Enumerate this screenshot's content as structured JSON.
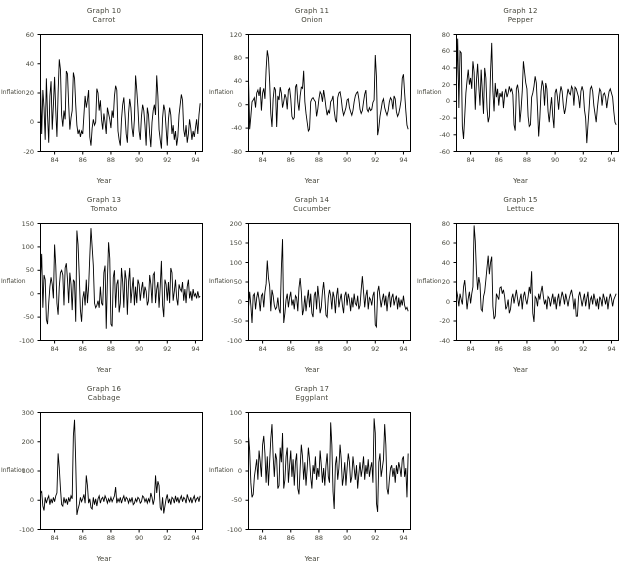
{
  "page": {
    "background": "#ffffff",
    "text_color": "#45453a",
    "line_color": "#000000"
  },
  "chart_data": [
    {
      "name": "carrot",
      "type": "line",
      "title": "Graph 10",
      "subtitle": "Carrot",
      "ylabel": "Inflation",
      "xlabel": "Year",
      "ylim": [
        -20,
        60
      ],
      "yticks": [
        60,
        40,
        20,
        0,
        -20
      ],
      "xlim": [
        83,
        94.5
      ],
      "xticks": [
        84,
        86,
        88,
        90,
        92,
        94
      ],
      "x_start": 83,
      "x_step": 0.08333,
      "grid": false,
      "legend": false,
      "values": [
        25,
        -8,
        22,
        10,
        -12,
        30,
        5,
        -14,
        18,
        28,
        -5,
        12,
        31,
        8,
        -10,
        20,
        43,
        36,
        5,
        -3,
        8,
        2,
        35,
        33,
        12,
        -5,
        3,
        8,
        34,
        30,
        12,
        -2,
        -8,
        -5,
        -10,
        -6,
        -8,
        5,
        18,
        10,
        15,
        22,
        -10,
        -16,
        -4,
        2,
        -2,
        0,
        23,
        20,
        8,
        15,
        2,
        -5,
        6,
        0,
        -8,
        10,
        6,
        2,
        -4,
        8,
        3,
        18,
        25,
        22,
        -6,
        -12,
        -16,
        2,
        12,
        17,
        5,
        -8,
        -14,
        6,
        16,
        10,
        -4,
        -10,
        2,
        32,
        22,
        10,
        -6,
        -12,
        4,
        12,
        8,
        -2,
        -16,
        10,
        5,
        -8,
        -17,
        0,
        8,
        12,
        5,
        32,
        18,
        -5,
        -12,
        -18,
        3,
        12,
        8,
        -4,
        -16,
        2,
        10,
        5,
        -8,
        -2,
        -12,
        -6,
        -16,
        -10,
        5,
        12,
        19,
        15,
        -5,
        -10,
        -2,
        -14,
        -8,
        2,
        -4,
        -12,
        -6,
        -10,
        -4,
        2,
        -8,
        5,
        13
      ]
    },
    {
      "name": "onion",
      "type": "line",
      "title": "Graph 11",
      "subtitle": "Onion",
      "ylabel": "Inflation",
      "xlabel": "Year",
      "ylim": [
        -80,
        120
      ],
      "yticks": [
        120,
        80,
        40,
        0,
        -40,
        -80
      ],
      "xlim": [
        83,
        94.5
      ],
      "xticks": [
        84,
        86,
        88,
        90,
        92,
        94
      ],
      "x_start": 83,
      "x_step": 0.08333,
      "grid": false,
      "legend": false,
      "values": [
        44,
        -42,
        -20,
        5,
        8,
        12,
        -5,
        20,
        25,
        15,
        30,
        -10,
        20,
        28,
        10,
        60,
        93,
        80,
        40,
        -15,
        -38,
        10,
        30,
        25,
        -38,
        15,
        8,
        30,
        20,
        -5,
        5,
        18,
        12,
        -8,
        25,
        28,
        10,
        -20,
        -25,
        -22,
        30,
        35,
        5,
        -10,
        15,
        30,
        28,
        58,
        5,
        -15,
        -30,
        -45,
        -42,
        5,
        10,
        12,
        8,
        5,
        -20,
        -8,
        10,
        22,
        18,
        5,
        25,
        12,
        -5,
        -18,
        -10,
        -15,
        5,
        8,
        15,
        -10,
        -25,
        -30,
        12,
        20,
        22,
        10,
        -8,
        -18,
        -12,
        -5,
        8,
        10,
        -5,
        -12,
        -18,
        -10,
        5,
        15,
        20,
        22,
        10,
        -8,
        -15,
        -10,
        5,
        18,
        25,
        -8,
        -12,
        -5,
        -10,
        -8,
        4,
        8,
        85,
        48,
        -52,
        -40,
        -20,
        -8,
        5,
        10,
        -5,
        -12,
        -18,
        -10,
        5,
        12,
        8,
        -8,
        15,
        10,
        -12,
        -20,
        -15,
        -5,
        8,
        45,
        52,
        20,
        -10,
        -35,
        -42
      ]
    },
    {
      "name": "pepper",
      "type": "line",
      "title": "Graph 12",
      "subtitle": "Pepper",
      "ylabel": "Inflation",
      "xlabel": "Year",
      "ylim": [
        -60,
        80
      ],
      "yticks": [
        80,
        60,
        40,
        20,
        0,
        -20,
        -40,
        -60
      ],
      "xlim": [
        83,
        94.5
      ],
      "xticks": [
        84,
        86,
        88,
        90,
        92,
        94
      ],
      "x_start": 83,
      "x_step": 0.08333,
      "grid": false,
      "legend": false,
      "values": [
        20,
        75,
        -8,
        60,
        58,
        -30,
        -45,
        -18,
        10,
        25,
        38,
        20,
        28,
        15,
        48,
        35,
        -10,
        25,
        45,
        18,
        -5,
        38,
        12,
        -15,
        40,
        28,
        -8,
        -25,
        -18,
        35,
        70,
        12,
        -12,
        22,
        5,
        15,
        -5,
        10,
        5,
        12,
        -8,
        8,
        15,
        5,
        10,
        18,
        12,
        15,
        8,
        -28,
        -35,
        15,
        20,
        10,
        -25,
        -10,
        12,
        48,
        35,
        22,
        15,
        -18,
        -30,
        -28,
        5,
        10,
        18,
        30,
        22,
        -8,
        -42,
        -20,
        12,
        25,
        18,
        -5,
        22,
        15,
        -12,
        -25,
        -8,
        5,
        -18,
        -32,
        10,
        15,
        5,
        -10,
        8,
        18,
        12,
        -5,
        -15,
        -8,
        5,
        15,
        10,
        8,
        18,
        15,
        -5,
        17,
        15,
        10,
        5,
        -8,
        12,
        18,
        12,
        -10,
        -20,
        -50,
        -28,
        -8,
        15,
        18,
        12,
        -5,
        -15,
        -25,
        -8,
        5,
        15,
        12,
        -5,
        8,
        10,
        5,
        -8,
        3,
        12,
        15,
        10,
        5,
        -12,
        -25,
        -28
      ]
    },
    {
      "name": "tomato",
      "type": "line",
      "title": "Graph 13",
      "subtitle": "Tomato",
      "ylabel": "Inflation",
      "xlabel": "Year",
      "ylim": [
        -100,
        150
      ],
      "yticks": [
        150,
        100,
        50,
        0,
        -50,
        -100
      ],
      "xlim": [
        83,
        94.5
      ],
      "xticks": [
        84,
        86,
        88,
        90,
        92,
        94
      ],
      "x_start": 83,
      "x_step": 0.08333,
      "grid": false,
      "legend": false,
      "values": [
        35,
        85,
        -30,
        40,
        30,
        -55,
        -65,
        -20,
        15,
        35,
        20,
        -10,
        105,
        60,
        -20,
        -45,
        15,
        45,
        50,
        40,
        -25,
        55,
        65,
        30,
        -20,
        45,
        20,
        -35,
        30,
        25,
        -60,
        135,
        105,
        40,
        -35,
        -60,
        -10,
        5,
        -25,
        30,
        -20,
        15,
        80,
        140,
        100,
        60,
        -20,
        -30,
        -25,
        -15,
        -30,
        15,
        -20,
        -25,
        45,
        60,
        -75,
        30,
        110,
        75,
        -65,
        -70,
        35,
        50,
        -30,
        20,
        30,
        -40,
        -20,
        55,
        25,
        -30,
        50,
        30,
        -45,
        25,
        55,
        -20,
        10,
        35,
        -25,
        15,
        -20,
        30,
        20,
        -15,
        10,
        25,
        -10,
        15,
        5,
        -25,
        -15,
        40,
        20,
        -20,
        40,
        45,
        -20,
        10,
        25,
        -30,
        15,
        70,
        -25,
        -50,
        30,
        20,
        -15,
        25,
        -20,
        55,
        45,
        -15,
        5,
        30,
        -10,
        -25,
        20,
        10,
        5,
        25,
        -15,
        10,
        -20,
        15,
        30,
        -10,
        5,
        -15,
        10,
        -5,
        0,
        -10,
        5,
        -8,
        -5
      ]
    },
    {
      "name": "cucumber",
      "type": "line",
      "title": "Graph 14",
      "subtitle": "Cucumber",
      "ylabel": "Inflation",
      "xlabel": "Year",
      "ylim": [
        -100,
        200
      ],
      "yticks": [
        200,
        150,
        100,
        50,
        0,
        -50,
        -100
      ],
      "xlim": [
        83,
        94.5
      ],
      "xticks": [
        84,
        86,
        88,
        90,
        92,
        94
      ],
      "x_start": 83,
      "x_step": 0.08333,
      "grid": false,
      "legend": false,
      "values": [
        -15,
        25,
        -10,
        -55,
        15,
        20,
        -20,
        10,
        25,
        5,
        -25,
        15,
        20,
        -15,
        25,
        45,
        105,
        60,
        40,
        -25,
        30,
        15,
        -10,
        -20,
        -15,
        10,
        -20,
        -30,
        85,
        160,
        -55,
        -30,
        5,
        20,
        -15,
        10,
        25,
        -10,
        5,
        -20,
        15,
        10,
        -25,
        35,
        60,
        25,
        -35,
        -20,
        15,
        -25,
        5,
        30,
        -15,
        20,
        -30,
        -40,
        15,
        25,
        -20,
        40,
        10,
        -30,
        -15,
        25,
        50,
        15,
        -35,
        -40,
        10,
        30,
        15,
        -20,
        25,
        10,
        -30,
        15,
        35,
        -15,
        5,
        20,
        -10,
        -30,
        15,
        25,
        -10,
        20,
        5,
        -25,
        10,
        -15,
        20,
        -5,
        -10,
        15,
        -20,
        -10,
        30,
        65,
        25,
        -15,
        15,
        30,
        -20,
        10,
        5,
        -10,
        15,
        25,
        -60,
        -65,
        25,
        40,
        10,
        -15,
        5,
        20,
        -10,
        15,
        -25,
        10,
        25,
        -15,
        10,
        20,
        -10,
        5,
        15,
        -20,
        10,
        -15,
        5,
        -10,
        15,
        -10,
        -20,
        -15,
        -25
      ]
    },
    {
      "name": "lettuce",
      "type": "line",
      "title": "Graph 15",
      "subtitle": "Lettuce",
      "ylabel": "Inflation",
      "xlabel": "Year",
      "ylim": [
        -40,
        80
      ],
      "yticks": [
        80,
        60,
        40,
        20,
        0,
        -20,
        -40
      ],
      "xlim": [
        83,
        94.5
      ],
      "xticks": [
        84,
        86,
        88,
        90,
        92,
        94
      ],
      "x_start": 83,
      "x_step": 0.08333,
      "grid": false,
      "legend": false,
      "values": [
        12,
        5,
        -5,
        8,
        2,
        -3,
        15,
        22,
        8,
        -8,
        3,
        10,
        -2,
        8,
        15,
        78,
        62,
        30,
        12,
        25,
        18,
        -8,
        -10,
        5,
        10,
        22,
        35,
        47,
        28,
        40,
        46,
        -5,
        -18,
        -15,
        8,
        5,
        2,
        14,
        15,
        8,
        12,
        5,
        -8,
        -5,
        2,
        -12,
        -8,
        3,
        8,
        -2,
        5,
        12,
        3,
        -5,
        2,
        8,
        -8,
        5,
        10,
        2,
        -3,
        5,
        15,
        8,
        31,
        -12,
        -21,
        5,
        3,
        -5,
        8,
        2,
        10,
        16,
        5,
        -3,
        2,
        -8,
        5,
        3,
        -5,
        2,
        8,
        -3,
        5,
        -8,
        2,
        8,
        -5,
        3,
        10,
        5,
        -3,
        8,
        2,
        -5,
        3,
        8,
        12,
        5,
        -8,
        3,
        -15,
        -15,
        5,
        10,
        3,
        -5,
        2,
        8,
        -5,
        3,
        10,
        -8,
        2,
        5,
        -3,
        8,
        2,
        -5,
        3,
        -8,
        5,
        2,
        -5,
        8,
        3,
        -3,
        5,
        -8,
        2,
        8,
        3,
        -5,
        2,
        5,
        8
      ]
    },
    {
      "name": "cabbage",
      "type": "line",
      "title": "Graph 16",
      "subtitle": "Cabbage",
      "ylabel": "Inflation",
      "xlabel": "Year",
      "ylim": [
        -100,
        300
      ],
      "yticks": [
        300,
        200,
        100,
        0,
        -100
      ],
      "xlim": [
        83,
        94.5
      ],
      "xticks": [
        84,
        86,
        88,
        90,
        92,
        94
      ],
      "x_start": 83,
      "x_step": 0.08333,
      "grid": false,
      "legend": false,
      "values": [
        25,
        30,
        -20,
        -35,
        10,
        -10,
        5,
        15,
        -15,
        5,
        -10,
        10,
        -5,
        15,
        25,
        160,
        110,
        40,
        -15,
        -20,
        10,
        -10,
        5,
        -15,
        10,
        -5,
        15,
        5,
        220,
        275,
        130,
        -50,
        -30,
        -15,
        10,
        -5,
        5,
        20,
        -10,
        85,
        50,
        -10,
        5,
        -25,
        -30,
        10,
        -15,
        5,
        -20,
        5,
        15,
        -10,
        5,
        10,
        -5,
        15,
        5,
        -10,
        5,
        -5,
        10,
        -5,
        5,
        15,
        45,
        -10,
        5,
        -5,
        10,
        -10,
        5,
        15,
        -5,
        10,
        5,
        -10,
        5,
        -5,
        10,
        -15,
        -10,
        5,
        -5,
        10,
        5,
        -10,
        -5,
        15,
        10,
        -5,
        5,
        -10,
        5,
        -5,
        25,
        10,
        -15,
        5,
        85,
        25,
        65,
        50,
        -25,
        -35,
        10,
        -45,
        -20,
        5,
        20,
        -10,
        5,
        -15,
        10,
        5,
        -10,
        15,
        -5,
        10,
        -10,
        5,
        15,
        -5,
        10,
        5,
        -10,
        20,
        5,
        -5,
        10,
        -10,
        5,
        15,
        -5,
        5,
        10,
        -5,
        15
      ]
    },
    {
      "name": "eggplant",
      "type": "line",
      "title": "Graph 17",
      "subtitle": "Eggplant",
      "ylabel": "Inflation",
      "xlabel": "Year",
      "ylim": [
        -100,
        100
      ],
      "yticks": [
        100,
        50,
        0,
        -50,
        -100
      ],
      "xlim": [
        83,
        94.5
      ],
      "xticks": [
        84,
        86,
        88,
        90,
        92,
        94
      ],
      "x_start": 83,
      "x_step": 0.08333,
      "grid": false,
      "legend": false,
      "values": [
        60,
        35,
        -20,
        -45,
        -40,
        -10,
        5,
        20,
        -15,
        35,
        15,
        -10,
        45,
        60,
        30,
        -20,
        25,
        -25,
        15,
        55,
        80,
        25,
        -10,
        30,
        20,
        -30,
        -25,
        40,
        15,
        65,
        -30,
        -15,
        25,
        40,
        -20,
        10,
        35,
        -10,
        20,
        -25,
        15,
        30,
        -30,
        -40,
        5,
        45,
        25,
        -15,
        15,
        -25,
        5,
        40,
        20,
        -10,
        -30,
        10,
        -5,
        25,
        -15,
        5,
        -10,
        35,
        10,
        -20,
        5,
        -25,
        10,
        30,
        -10,
        -20,
        83,
        45,
        -35,
        -65,
        10,
        25,
        -15,
        5,
        45,
        20,
        -25,
        -10,
        15,
        -25,
        5,
        30,
        15,
        -20,
        -10,
        25,
        5,
        -15,
        10,
        -30,
        -5,
        15,
        -10,
        5,
        25,
        -15,
        10,
        -5,
        20,
        -10,
        5,
        15,
        -20,
        90,
        65,
        -55,
        -70,
        15,
        30,
        -10,
        5,
        20,
        80,
        45,
        -30,
        -40,
        -15,
        5,
        10,
        -10,
        5,
        -20,
        10,
        -5,
        15,
        5,
        -10,
        20,
        25,
        -10,
        5,
        -45,
        30
      ]
    }
  ]
}
